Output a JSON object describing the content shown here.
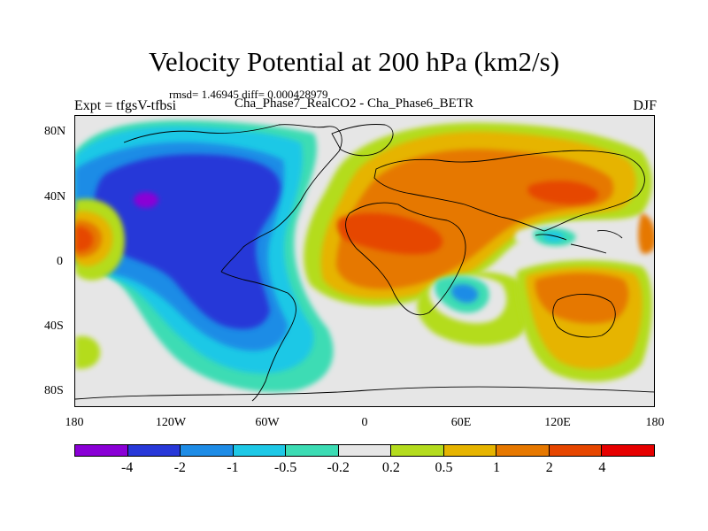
{
  "figure": {
    "title": "Velocity Potential at 200 hPa (km2/s)",
    "stats": "rmsd= 1.46945 diff= 0.000428979",
    "expt": "Expt = tfgsV-tfbsi",
    "subtitle": "Cha_Phase7_RealCO2 - Cha_Phase6_BETR",
    "season": "DJF"
  },
  "axes": {
    "lat_labels": [
      "80N",
      "40N",
      "0",
      "40S",
      "80S"
    ],
    "lon_labels": [
      "180",
      "120W",
      "60W",
      "0",
      "60E",
      "120E",
      "180"
    ]
  },
  "colorbar": {
    "labels": [
      "-4",
      "-2",
      "-1",
      "-0.5",
      "-0.2",
      "0.2",
      "0.5",
      "1",
      "2",
      "4"
    ],
    "colors": [
      "#8a00d6",
      "#2838d8",
      "#1e8ce6",
      "#1ec8e6",
      "#3cdcb4",
      "#e6e6e6",
      "#b4dc1e",
      "#e6b400",
      "#e67800",
      "#e64600",
      "#e60000"
    ]
  },
  "chart_data": {
    "type": "heatmap",
    "title": "Velocity Potential at 200 hPa (km2/s)",
    "variable": "Velocity Potential",
    "level": "200 hPa",
    "units": "km2/s",
    "xlabel": "",
    "ylabel": "",
    "xlim": [
      -180,
      180
    ],
    "ylim": [
      -90,
      90
    ],
    "levels": [
      -4,
      -2,
      -1,
      -0.5,
      -0.2,
      0.2,
      0.5,
      1,
      2,
      4
    ],
    "features": [
      {
        "region": "East Pacific / Americas",
        "sign": "negative",
        "min_level": -4,
        "center_lon": -135,
        "center_lat": 35
      },
      {
        "region": "Atlantic / Africa / Eurasia",
        "sign": "positive",
        "max_level": 2,
        "center_lon": 60,
        "center_lat": 20
      },
      {
        "region": "Indian Ocean south",
        "sign": "negative",
        "min_level": -1,
        "center_lon": 60,
        "center_lat": -25
      },
      {
        "region": "Central Pacific",
        "sign": "positive",
        "max_level": 2,
        "center_lon": -170,
        "center_lat": 5
      },
      {
        "region": "Australia",
        "sign": "positive",
        "max_level": 1,
        "center_lon": 130,
        "center_lat": -25
      }
    ]
  }
}
